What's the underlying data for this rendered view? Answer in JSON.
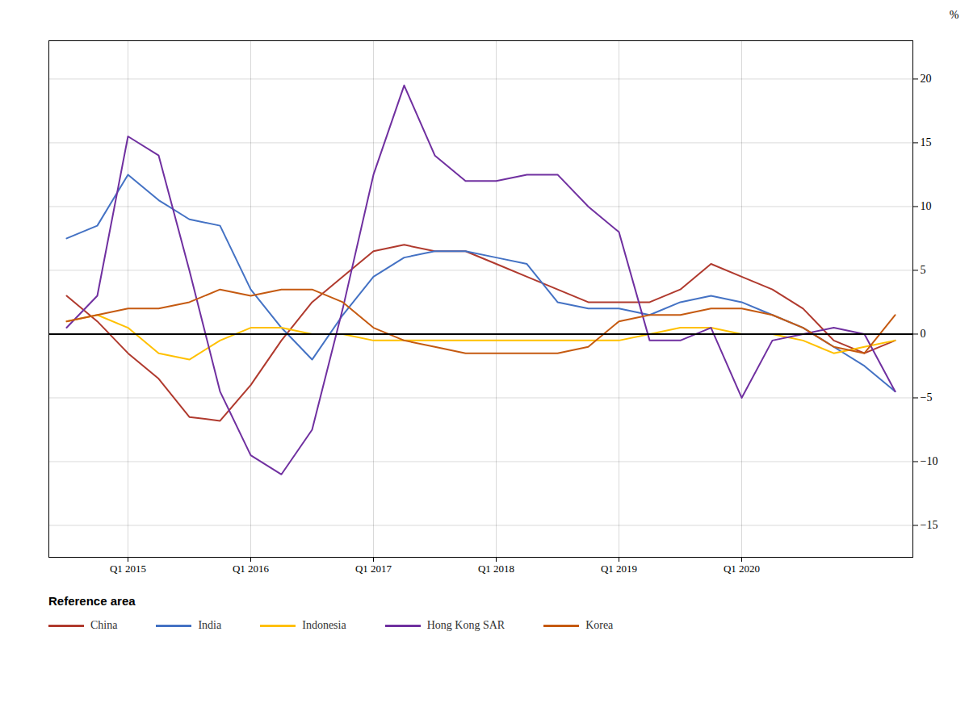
{
  "chart_data": {
    "type": "line",
    "categories": [
      null,
      null,
      "Q1 2015",
      null,
      null,
      null,
      "Q1 2016",
      null,
      null,
      null,
      "Q1 2017",
      null,
      null,
      null,
      "Q1 2018",
      null,
      null,
      null,
      "Q1 2019",
      null,
      null,
      null,
      "Q1 2020",
      null,
      null,
      null,
      null,
      null
    ],
    "series": [
      {
        "name": "China",
        "color": "#b03a2e",
        "values": [
          3.0,
          1.0,
          -1.5,
          -3.5,
          -6.5,
          -6.8,
          -4.0,
          -0.5,
          2.5,
          4.5,
          6.5,
          7.0,
          6.5,
          6.5,
          5.5,
          4.5,
          3.5,
          2.5,
          2.5,
          2.5,
          3.5,
          5.5,
          4.5,
          3.5,
          2.0,
          -0.5,
          -1.5,
          -0.5
        ]
      },
      {
        "name": "India",
        "color": "#4472c4",
        "values": [
          7.5,
          8.5,
          12.5,
          10.5,
          9.0,
          8.5,
          3.5,
          0.5,
          -2.0,
          1.5,
          4.5,
          6.0,
          6.5,
          6.5,
          6.0,
          5.5,
          2.5,
          2.0,
          2.0,
          1.5,
          2.5,
          3.0,
          2.5,
          1.5,
          0.5,
          -1.0,
          -2.5,
          -4.5
        ]
      },
      {
        "name": "Indonesia",
        "color": "#ffc000",
        "values": [
          1.0,
          1.5,
          0.5,
          -1.5,
          -2.0,
          -0.5,
          0.5,
          0.5,
          0.0,
          0.0,
          -0.5,
          -0.5,
          -0.5,
          -0.5,
          -0.5,
          -0.5,
          -0.5,
          -0.5,
          -0.5,
          0.0,
          0.5,
          0.5,
          0.0,
          0.0,
          -0.5,
          -1.5,
          -1.0,
          -0.5
        ]
      },
      {
        "name": "Hong Kong SAR",
        "color": "#7030a0",
        "values": [
          0.5,
          3.0,
          15.5,
          14.0,
          5.0,
          -4.5,
          -9.5,
          -11.0,
          -7.5,
          2.0,
          12.5,
          19.5,
          14.0,
          12.0,
          12.0,
          12.5,
          12.5,
          10.0,
          8.0,
          -0.5,
          -0.5,
          0.5,
          -5.0,
          -0.5,
          0.0,
          0.5,
          0.0,
          -4.5
        ]
      },
      {
        "name": "Korea",
        "color": "#c55a11",
        "values": [
          1.0,
          1.5,
          2.0,
          2.0,
          2.5,
          3.5,
          3.0,
          3.5,
          3.5,
          2.5,
          0.5,
          -0.5,
          -1.0,
          -1.5,
          -1.5,
          -1.5,
          -1.5,
          -1.0,
          1.0,
          1.5,
          1.5,
          2.0,
          2.0,
          1.5,
          0.5,
          -1.0,
          -1.5,
          1.5
        ]
      }
    ],
    "ylabel": "%",
    "ylim": [
      -17.5,
      23.0
    ],
    "yticks": [
      -15,
      -10,
      -5,
      0,
      5,
      10,
      15,
      20
    ],
    "annotations": [
      "Reference area"
    ],
    "grid": true,
    "legend": "bottom"
  }
}
